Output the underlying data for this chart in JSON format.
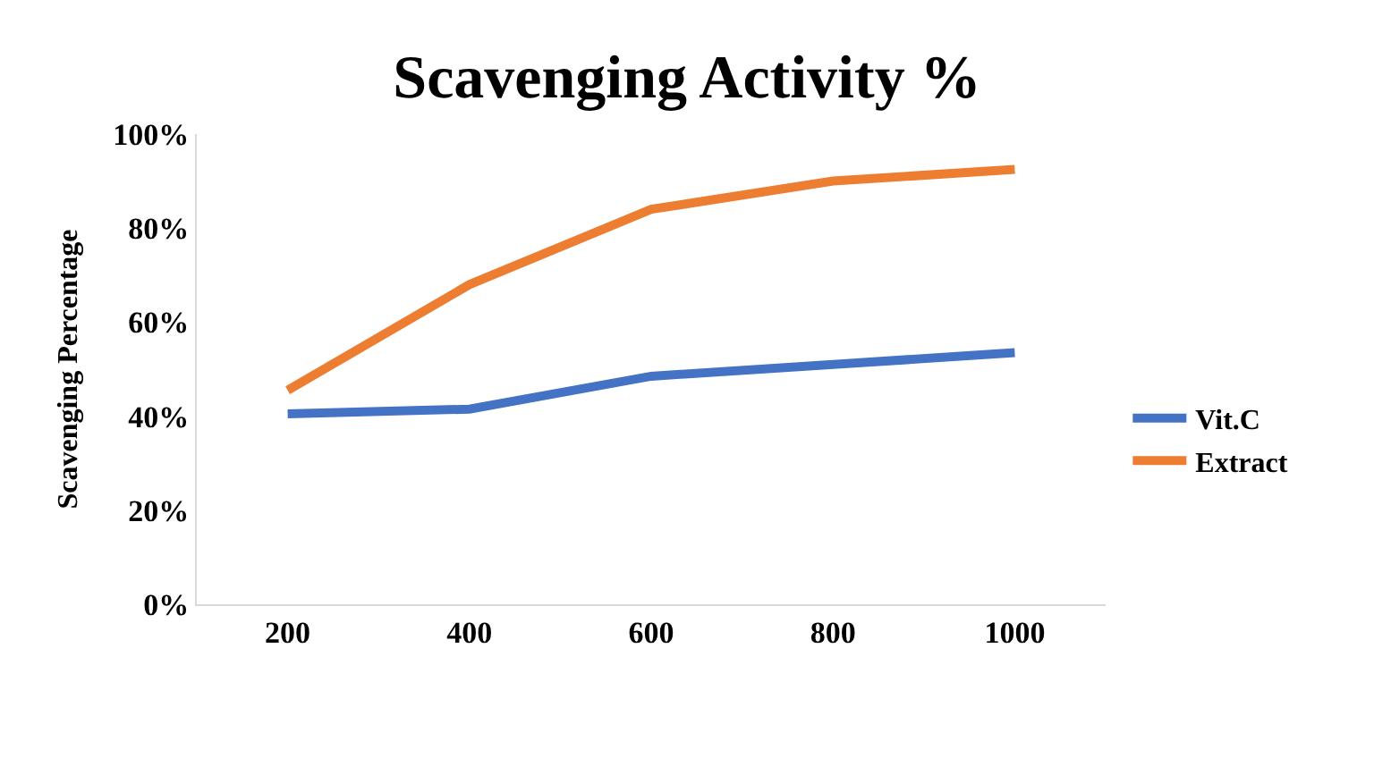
{
  "chart_data": {
    "type": "line",
    "title": "Scavenging Activity %",
    "ylabel": "Scavenging Percentage",
    "categories": [
      "200",
      "400",
      "600",
      "800",
      "1000"
    ],
    "series": [
      {
        "name": "Vit.C",
        "color": "#4472c4",
        "values": [
          40.5,
          41.5,
          48.5,
          51,
          53.5
        ]
      },
      {
        "name": "Extract",
        "color": "#ed7d31",
        "values": [
          45.5,
          68,
          84,
          90,
          92.5
        ]
      }
    ],
    "ylim": [
      0,
      100
    ],
    "yticks": [
      {
        "value": 0,
        "label": "0%"
      },
      {
        "value": 20,
        "label": "20%"
      },
      {
        "value": 40,
        "label": "40%"
      },
      {
        "value": 60,
        "label": "60%"
      },
      {
        "value": 80,
        "label": "80%"
      },
      {
        "value": 100,
        "label": "100%"
      }
    ],
    "legend": "right",
    "marker": "none",
    "line_style": "solid"
  }
}
